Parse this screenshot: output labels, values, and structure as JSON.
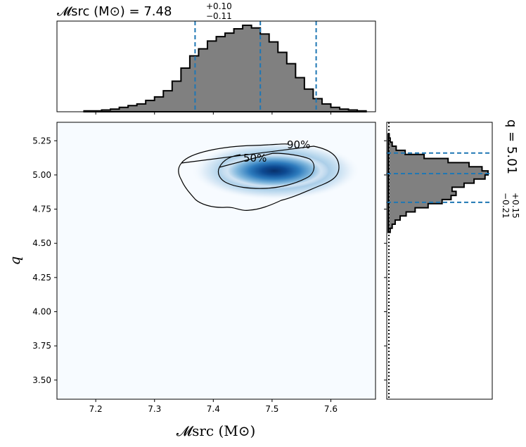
{
  "chart_data": [
    {
      "type": "histogram",
      "panel": "top-marginal",
      "title": "𝓜src (M⊙) = 7.48",
      "title_main": "𝓜src (M⊙) = 7.48",
      "title_upper": "+0.10",
      "title_lower": "−0.11",
      "xlim": [
        7.134,
        7.676
      ],
      "lines": [
        7.369,
        7.48,
        7.575
      ],
      "bins": [
        7.18,
        7.195,
        7.21,
        7.225,
        7.24,
        7.255,
        7.27,
        7.285,
        7.3,
        7.315,
        7.33,
        7.345,
        7.36,
        7.375,
        7.39,
        7.405,
        7.42,
        7.435,
        7.45,
        7.465,
        7.48,
        7.495,
        7.51,
        7.525,
        7.54,
        7.555,
        7.57,
        7.585,
        7.6,
        7.615,
        7.63,
        7.645,
        7.66
      ],
      "counts": [
        0.01,
        0.01,
        0.02,
        0.03,
        0.05,
        0.07,
        0.09,
        0.13,
        0.17,
        0.24,
        0.35,
        0.5,
        0.64,
        0.72,
        0.81,
        0.86,
        0.9,
        0.95,
        0.99,
        0.96,
        0.89,
        0.8,
        0.68,
        0.55,
        0.39,
        0.26,
        0.15,
        0.09,
        0.05,
        0.03,
        0.02,
        0.01
      ]
    },
    {
      "type": "heatmap",
      "panel": "joint",
      "xlabel": "𝓜src (M⊙)",
      "ylabel": "q",
      "xlim": [
        7.134,
        7.676
      ],
      "ylim": [
        3.36,
        5.385
      ],
      "xticks": [
        "7.2",
        "7.3",
        "7.4",
        "7.5",
        "7.6"
      ],
      "yticks": [
        "3.50",
        "3.75",
        "4.00",
        "4.25",
        "4.50",
        "4.75",
        "5.00",
        "5.25"
      ],
      "contour_labels": [
        "50%",
        "90%"
      ],
      "peak": [
        7.49,
        5.02
      ],
      "colormap": [
        "#f7fbff",
        "#c6dbef",
        "#6baed6",
        "#2171b5",
        "#08306b"
      ]
    },
    {
      "type": "histogram",
      "panel": "right-marginal",
      "title": "q = 5.01",
      "title_main": "q = 5.01",
      "title_upper": "+0.15",
      "title_lower": "−0.21",
      "ylim": [
        3.36,
        5.385
      ],
      "lines": [
        4.8,
        5.01,
        5.16
      ],
      "bins": [
        4.58,
        4.61,
        4.64,
        4.67,
        4.7,
        4.73,
        4.76,
        4.79,
        4.82,
        4.85,
        4.88,
        4.91,
        4.94,
        4.97,
        5.0,
        5.03,
        5.06,
        5.09,
        5.12,
        5.15,
        5.18,
        5.21,
        5.24,
        5.27,
        5.3
      ],
      "counts": [
        0.02,
        0.04,
        0.07,
        0.12,
        0.18,
        0.27,
        0.4,
        0.54,
        0.63,
        0.68,
        0.64,
        0.76,
        0.86,
        0.97,
        1.0,
        0.94,
        0.81,
        0.6,
        0.36,
        0.17,
        0.08,
        0.04,
        0.02,
        0.01
      ]
    }
  ],
  "colors": {
    "hist_fill": "#808080",
    "quantile_line": "#1f77b4",
    "contour": "#000000"
  }
}
